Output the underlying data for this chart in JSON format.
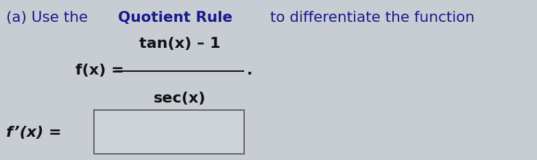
{
  "background_color": "#c8cdd4",
  "title_segments": [
    {
      "text": "(a) Use the ",
      "bold": false
    },
    {
      "text": "Quotient Rule",
      "bold": true
    },
    {
      "text": " to differentiate the function",
      "bold": false
    }
  ],
  "title_color": "#1a1a8c",
  "fx_label": "f(x) =",
  "numerator": "tan(x) – 1",
  "denominator": "sec(x)",
  "fpx_label": "f’(x) =",
  "math_color": "#111111",
  "box_facecolor": "#cfd4db",
  "box_edgecolor": "#666666",
  "font_size_title": 15.5,
  "font_size_body": 15
}
